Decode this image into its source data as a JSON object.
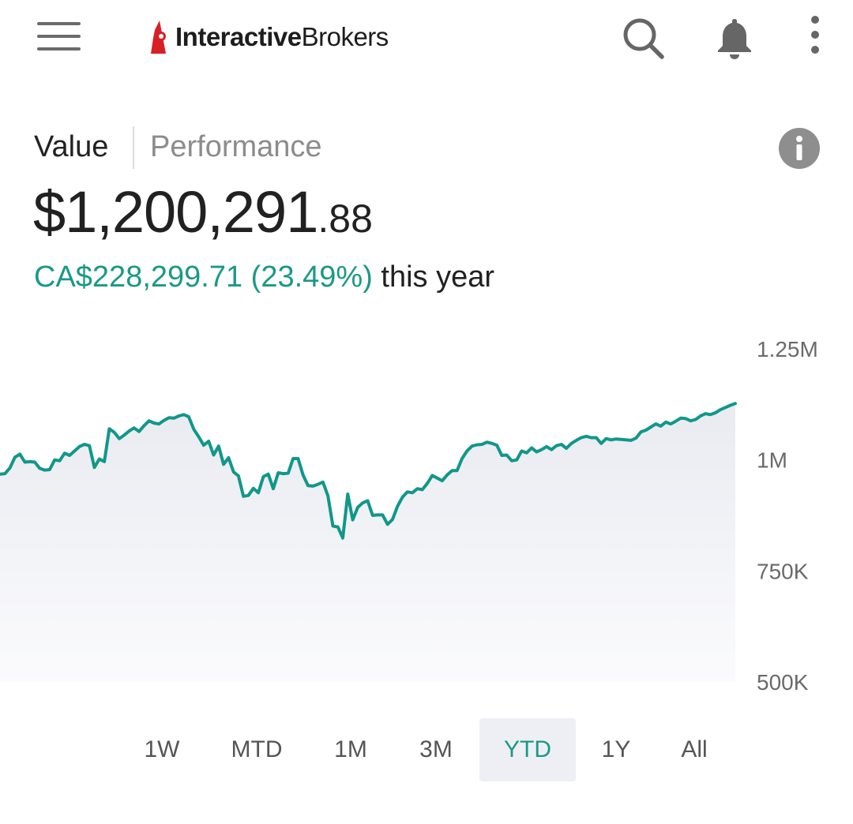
{
  "header": {
    "logo_bold": "Interactive",
    "logo_regular": "Brokers",
    "icons": [
      "hamburger-menu-icon",
      "search-icon",
      "bell-icon",
      "more-vertical-icon"
    ]
  },
  "tabs": {
    "value": "Value",
    "performance": "Performance",
    "selected": "Value"
  },
  "portfolio": {
    "total_main": "$1,200,291",
    "total_cents": ".88",
    "change_amount": "CA$228,299.71 (23.49%)",
    "change_suffix": "this year"
  },
  "colors": {
    "accent": "#1a9985",
    "line": "#11978a",
    "area": "#eef0f5",
    "logo_red": "#d81f26"
  },
  "chart_data": {
    "type": "area",
    "y_tick_labels": [
      "1.25M",
      "1M",
      "750K",
      "500K"
    ],
    "y_ticks": [
      1250000,
      1000000,
      750000,
      500000
    ],
    "ylim": [
      500000,
      1250000
    ],
    "y_axis_position": "right",
    "grid": false,
    "values": [
      968000,
      969000,
      982000,
      1006000,
      1013000,
      995000,
      996000,
      995000,
      981000,
      977000,
      978000,
      1000000,
      998000,
      1015000,
      1010000,
      1020000,
      1030000,
      1035000,
      1032000,
      983000,
      1002000,
      996000,
      1070000,
      1062000,
      1048000,
      1056000,
      1065000,
      1072000,
      1064000,
      1077000,
      1088000,
      1083000,
      1081000,
      1089000,
      1095000,
      1094000,
      1099000,
      1102000,
      1097000,
      1069000,
      1052000,
      1033000,
      1042000,
      1011000,
      1031000,
      990000,
      1005000,
      973000,
      964000,
      918000,
      920000,
      936000,
      926000,
      962000,
      968000,
      935000,
      971000,
      969000,
      970000,
      1003000,
      1003000,
      966000,
      942000,
      941000,
      945000,
      950000,
      919000,
      851000,
      849000,
      824000,
      923000,
      865000,
      893000,
      903000,
      908000,
      875000,
      876000,
      876000,
      855000,
      866000,
      895000,
      916000,
      928000,
      926000,
      935000,
      933000,
      947000,
      965000,
      959000,
      953000,
      966000,
      976000,
      976000,
      1003000,
      1020000,
      1031000,
      1034000,
      1035000,
      1040000,
      1037000,
      1033000,
      1010000,
      1011000,
      998000,
      1000000,
      1020000,
      1016000,
      1027000,
      1018000,
      1023000,
      1030000,
      1023000,
      1032000,
      1035000,
      1026000,
      1037000,
      1044000,
      1050000,
      1053000,
      1050000,
      1050000,
      1037000,
      1048000,
      1045000,
      1047000,
      1046000,
      1045000,
      1044000,
      1049000,
      1063000,
      1067000,
      1074000,
      1081000,
      1076000,
      1085000,
      1081000,
      1087000,
      1094000,
      1093000,
      1088000,
      1091000,
      1099000,
      1104000,
      1102000,
      1106000,
      1113000,
      1118000,
      1123000,
      1127000
    ]
  },
  "ranges": {
    "items": [
      "1W",
      "MTD",
      "1M",
      "3M",
      "YTD",
      "1Y",
      "All"
    ],
    "selected": "YTD"
  }
}
